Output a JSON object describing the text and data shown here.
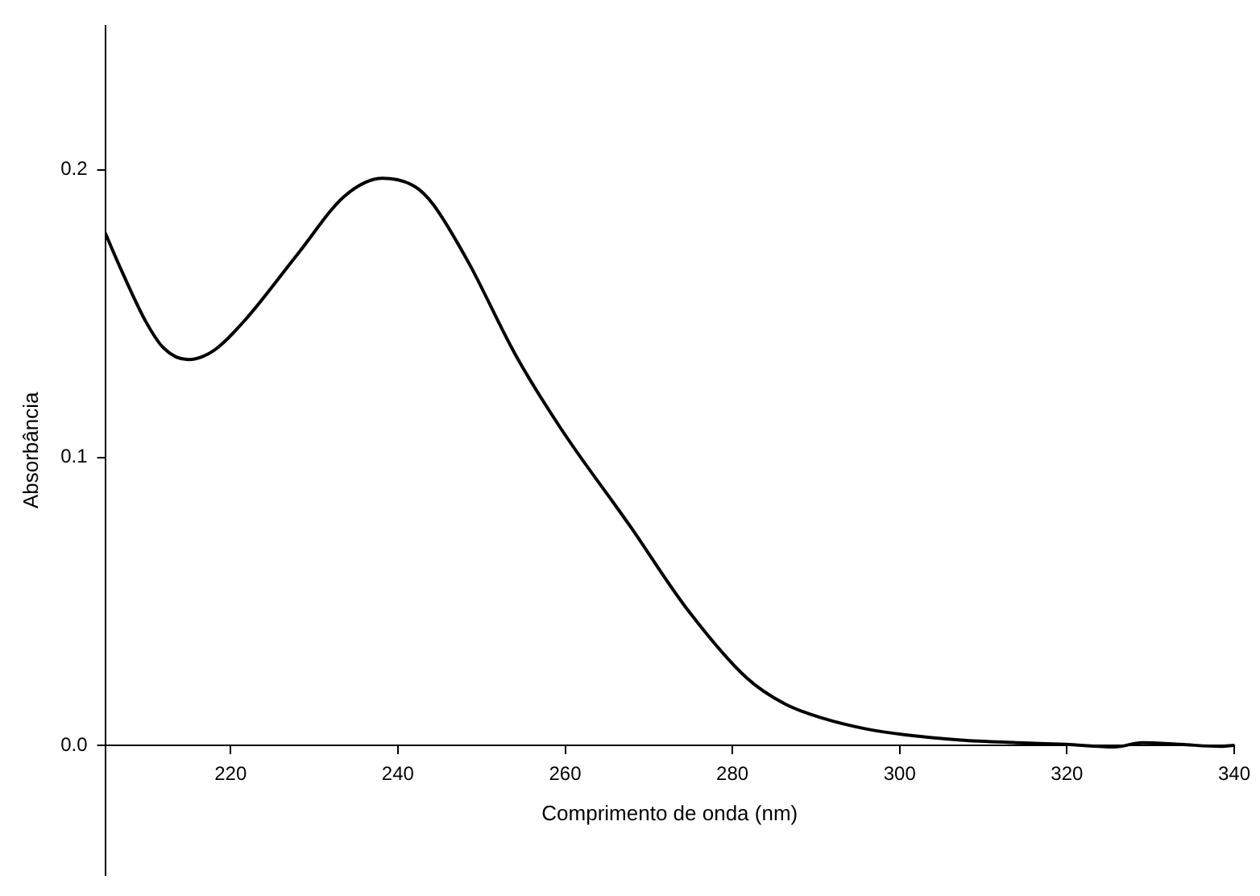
{
  "chart_data": {
    "type": "line",
    "xlabel": "Comprimento de onda (nm)",
    "ylabel": "Absorbância",
    "xlim": [
      205,
      340
    ],
    "xticks": [
      220,
      240,
      260,
      280,
      300,
      320,
      340
    ],
    "ylim": [
      -0.045,
      0.25
    ],
    "yticks": [
      {
        "value": 0,
        "label": "0.0"
      },
      0.1,
      0.2
    ],
    "grid": false,
    "legend": false,
    "marker": "none",
    "line_style": "solid",
    "series": [
      {
        "color": "#000000",
        "x": [
          205,
          207.1,
          209.9,
          212,
          214.9,
          217.9,
          221.8,
          228.1,
          233.7,
          238.2,
          242.1,
          244.2,
          248.4,
          254,
          259.5,
          267.8,
          274.4,
          281.7,
          286.3,
          290.9,
          296.1,
          300.7,
          307.3,
          313.9,
          319.8,
          325.7,
          329,
          333.6,
          338.2,
          340
        ],
        "values": [
          0.178,
          0.164,
          0.147,
          0.138,
          0.134,
          0.137,
          0.148,
          0.171,
          0.191,
          0.197,
          0.194,
          0.188,
          0.168,
          0.136,
          0.11,
          0.076,
          0.048,
          0.0234,
          0.0143,
          0.0093,
          0.0056,
          0.0036,
          0.0018,
          0.0009,
          0.0003,
          -0.0006,
          0.0009,
          0.0003,
          -0.0004,
          0
        ]
      }
    ]
  }
}
